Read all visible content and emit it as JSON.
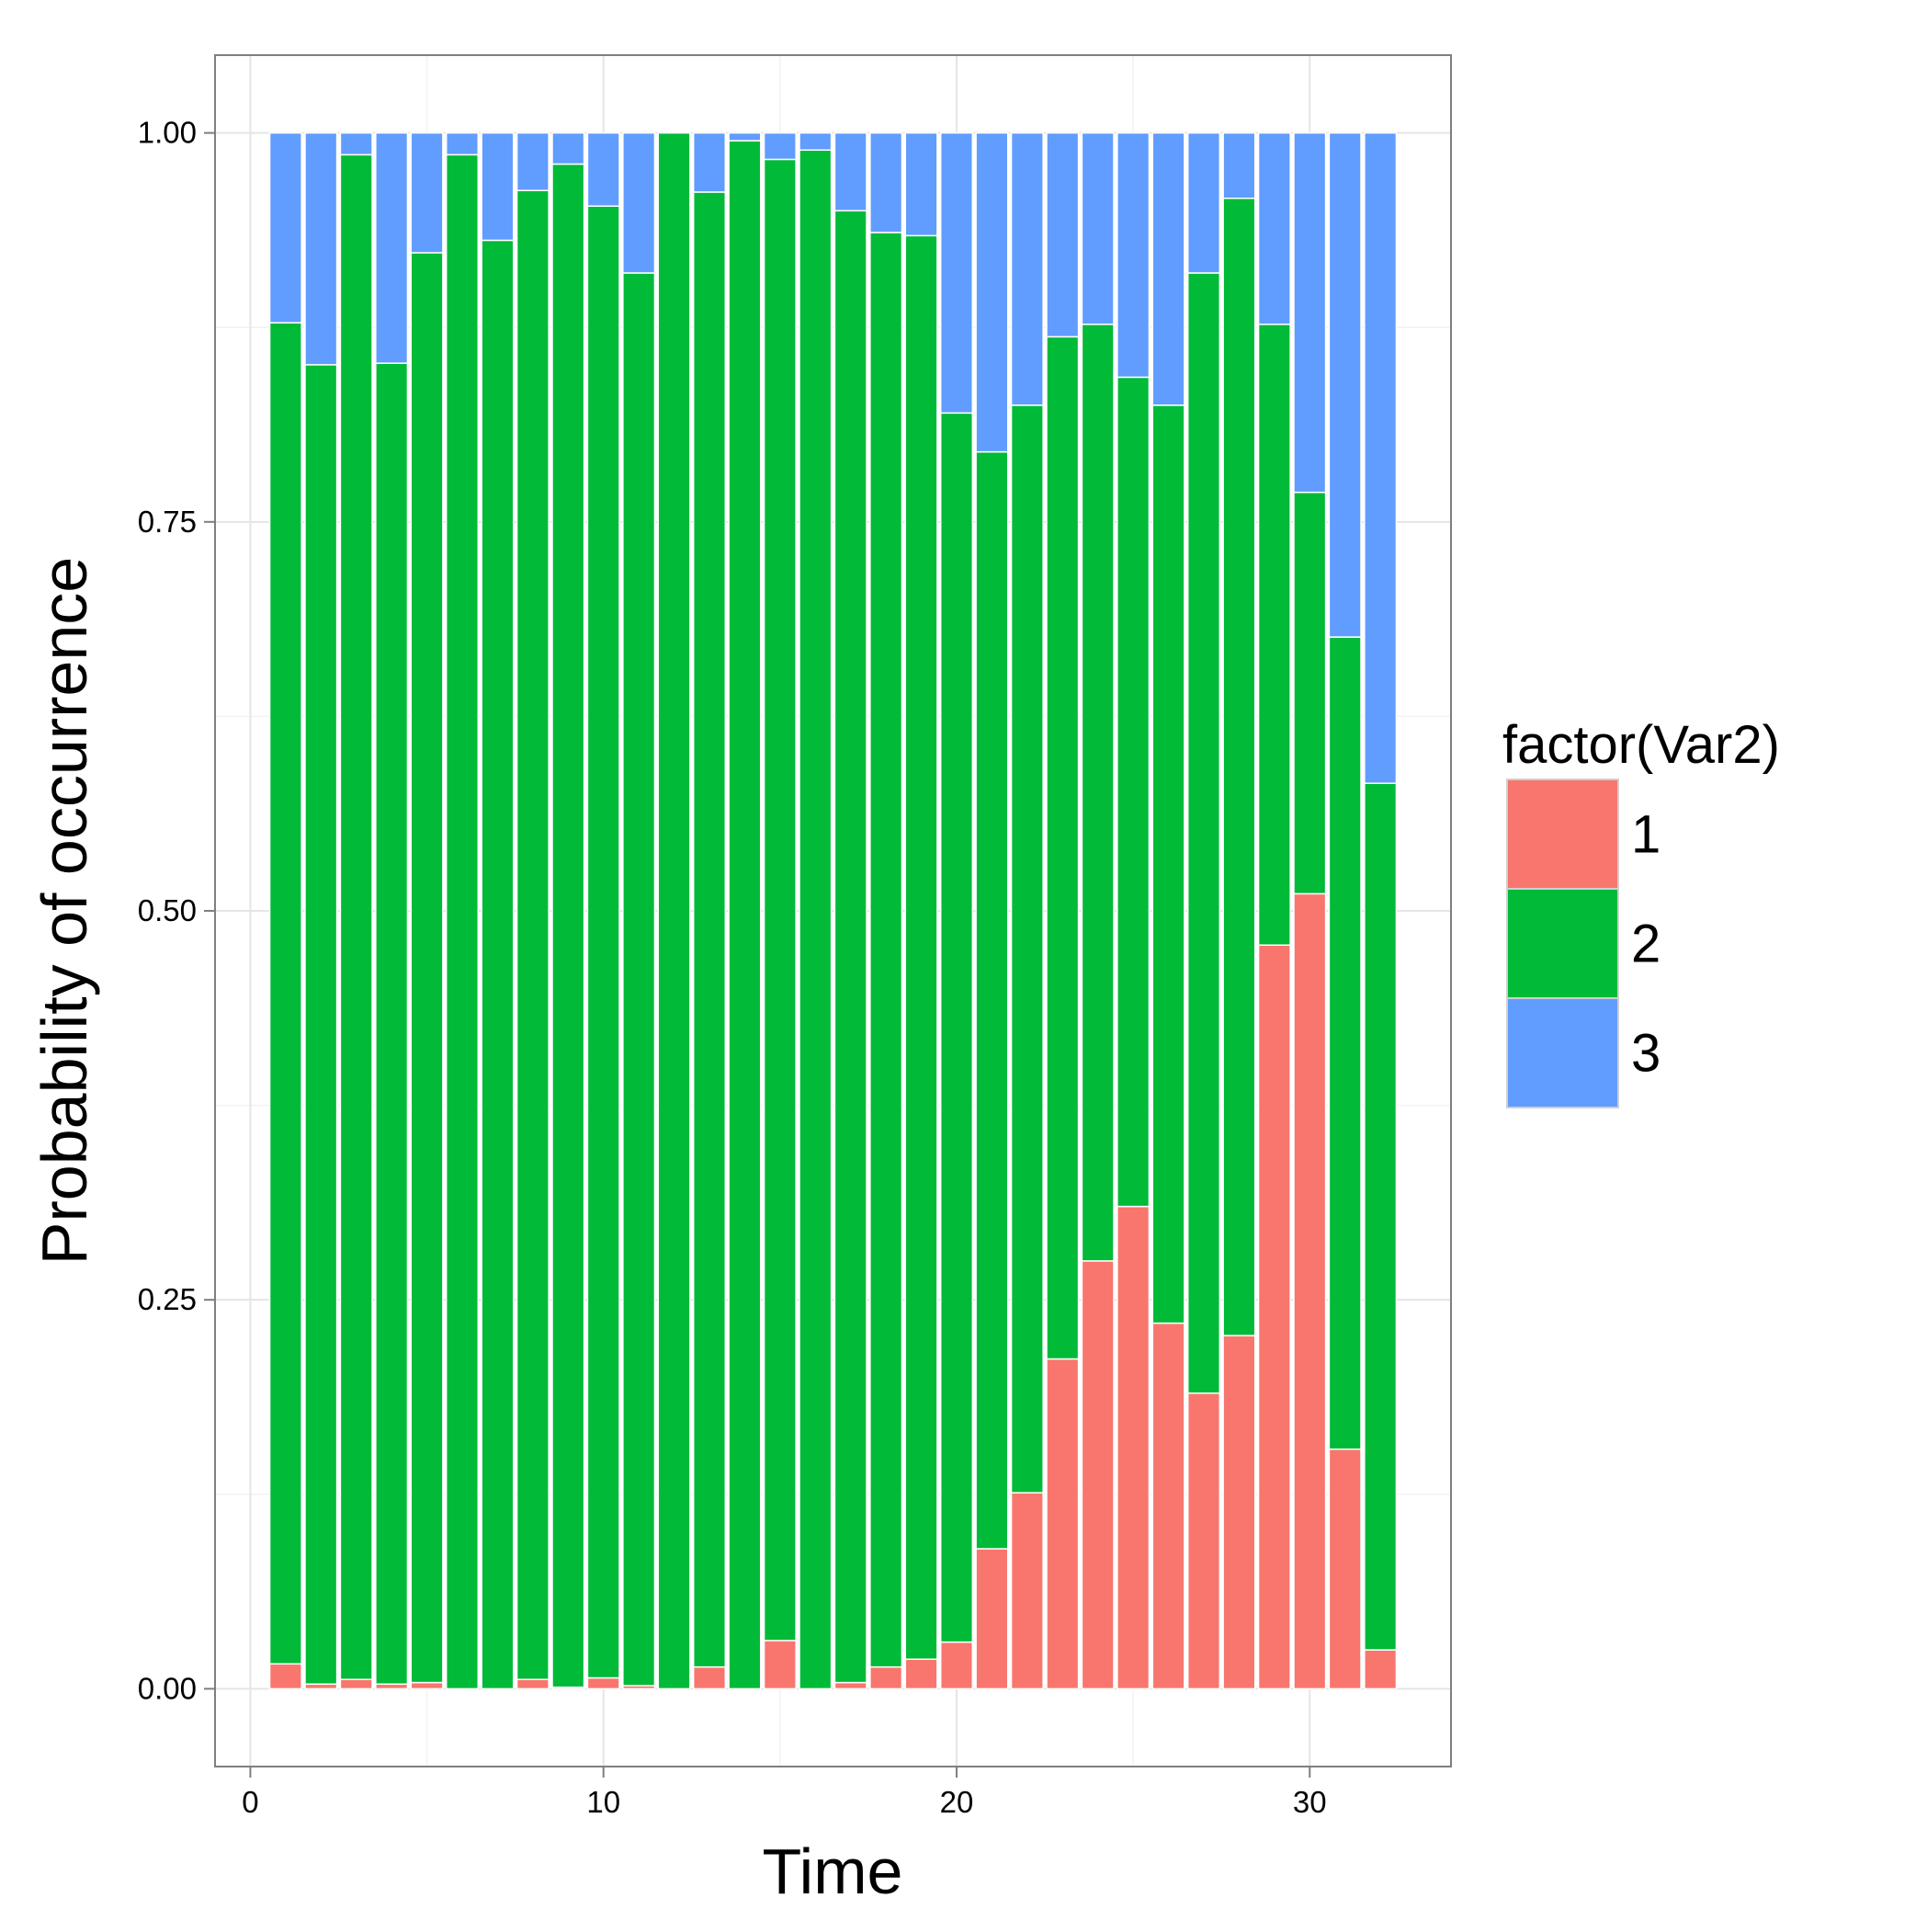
{
  "chart_data": {
    "type": "bar",
    "stacked": true,
    "xlabel": "Time",
    "ylabel": "Probability of occurrence",
    "xlim": [
      -1,
      34
    ],
    "ylim": [
      -0.05,
      1.05
    ],
    "x_ticks": [
      0,
      10,
      20,
      30
    ],
    "y_ticks": [
      0.0,
      0.25,
      0.5,
      0.75,
      1.0
    ],
    "x_tick_labels": [
      "0",
      "10",
      "20",
      "30"
    ],
    "y_tick_labels": [
      "0.00",
      "0.25",
      "0.50",
      "0.75",
      "1.00"
    ],
    "grid": true,
    "legend": {
      "title": "factor(Var2)",
      "placement": "right",
      "entries": [
        "1",
        "2",
        "3"
      ]
    },
    "x": [
      1,
      2,
      3,
      4,
      5,
      6,
      7,
      8,
      9,
      10,
      11,
      12,
      13,
      14,
      15,
      16,
      17,
      18,
      19,
      20,
      21,
      22,
      23,
      24,
      25,
      26,
      27,
      28,
      29,
      30,
      31,
      32
    ],
    "series": [
      {
        "name": "1",
        "color": "#F8766D",
        "values": [
          0.016,
          0.003,
          0.006,
          0.003,
          0.004,
          0.0,
          0.0,
          0.006,
          0.001,
          0.007,
          0.002,
          0.0,
          0.014,
          0.0,
          0.031,
          0.0,
          0.004,
          0.014,
          0.019,
          0.03,
          0.09,
          0.126,
          0.212,
          0.275,
          0.31,
          0.235,
          0.19,
          0.227,
          0.478,
          0.511,
          0.154,
          0.025
        ]
      },
      {
        "name": "2",
        "color": "#00BA38",
        "values": [
          0.862,
          0.848,
          0.98,
          0.849,
          0.919,
          0.986,
          0.931,
          0.957,
          0.979,
          0.946,
          0.908,
          1.0,
          0.948,
          0.995,
          0.952,
          0.989,
          0.946,
          0.922,
          0.915,
          0.79,
          0.705,
          0.699,
          0.657,
          0.602,
          0.533,
          0.59,
          0.72,
          0.731,
          0.399,
          0.258,
          0.522,
          0.557
        ]
      },
      {
        "name": "3",
        "color": "#619CFF",
        "values": [
          0.122,
          0.149,
          0.014,
          0.148,
          0.077,
          0.014,
          0.069,
          0.037,
          0.02,
          0.047,
          0.09,
          0.0,
          0.038,
          0.005,
          0.017,
          0.011,
          0.05,
          0.064,
          0.066,
          0.18,
          0.205,
          0.175,
          0.131,
          0.123,
          0.157,
          0.175,
          0.09,
          0.042,
          0.123,
          0.231,
          0.324,
          0.418
        ]
      }
    ]
  }
}
